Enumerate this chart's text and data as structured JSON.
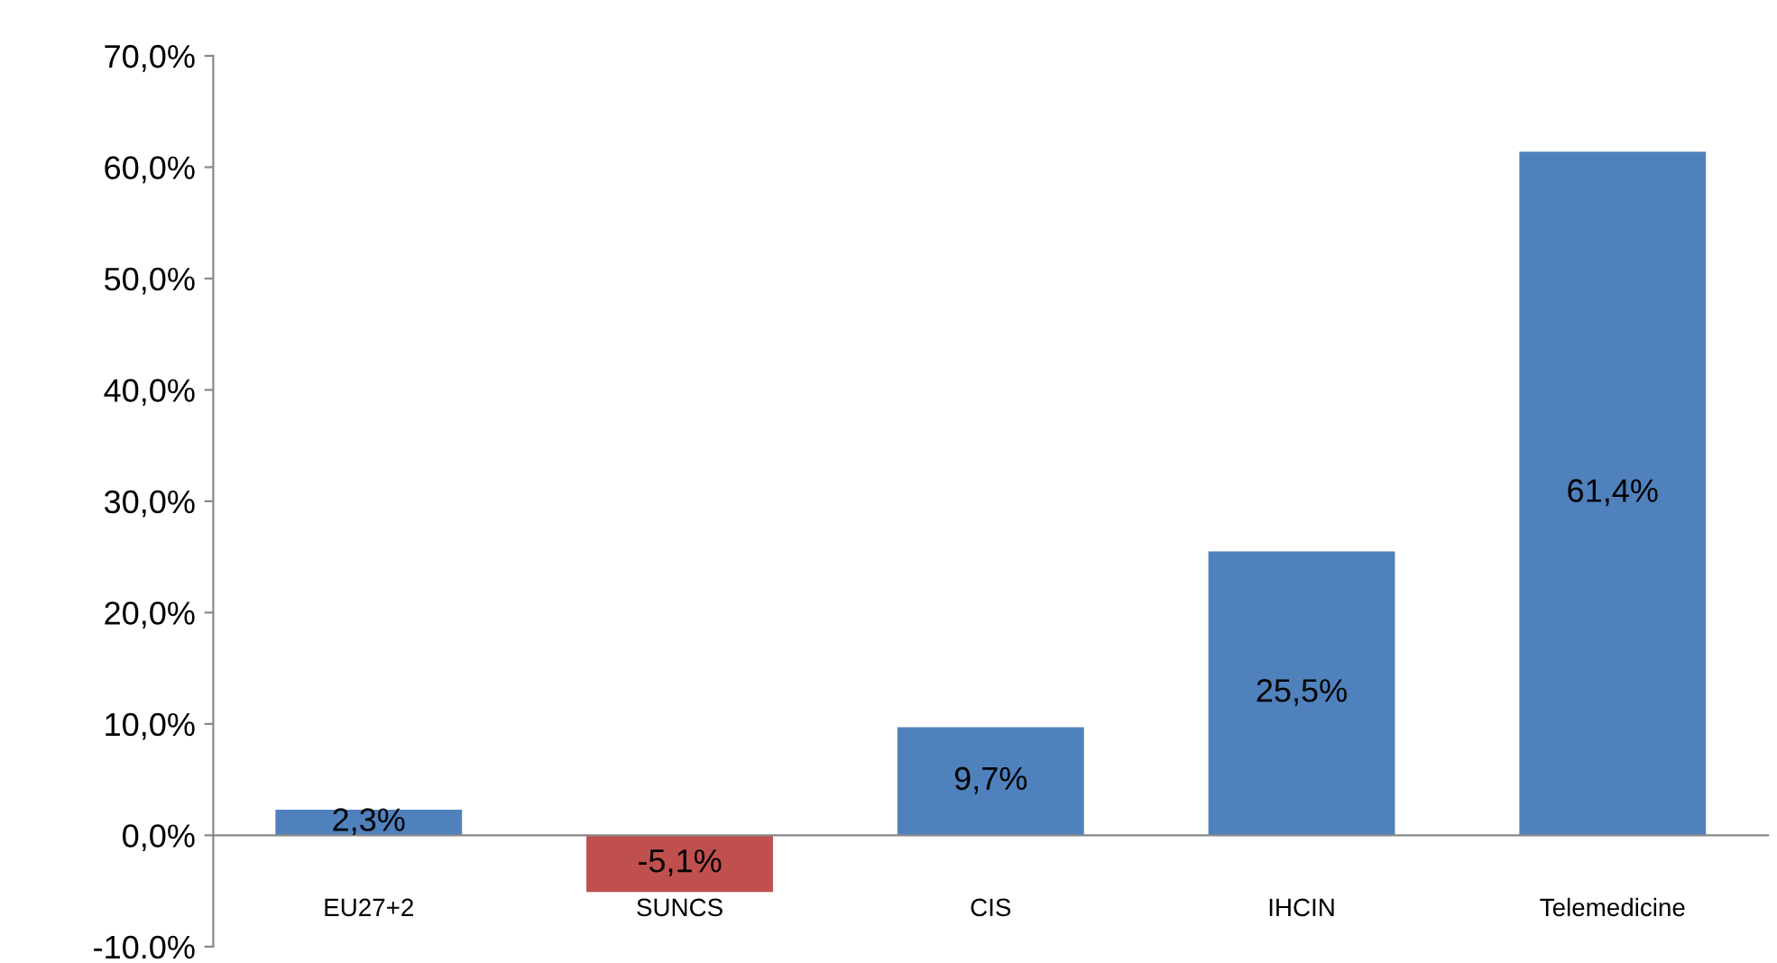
{
  "chart_data": {
    "type": "bar",
    "categories": [
      "EU27+2",
      "SUNCS",
      "CIS",
      "IHCIN",
      "Telemedicine"
    ],
    "values": [
      2.3,
      -5.1,
      9.7,
      25.5,
      61.4
    ],
    "colors": [
      "#4f81bd",
      "#c0504d",
      "#4f81bd",
      "#4f81bd",
      "#4f81bd"
    ],
    "value_labels": [
      "2,3%",
      "-5,1%",
      "9,7%",
      "25,5%",
      "61,4%"
    ],
    "ylim": [
      -10,
      70
    ],
    "yticks": [
      {
        "value": -10,
        "label": "-10.0%"
      },
      {
        "value": 0,
        "label": "0,0%"
      },
      {
        "value": 10,
        "label": "10,0%"
      },
      {
        "value": 20,
        "label": "20,0%"
      },
      {
        "value": 30,
        "label": "30,0%"
      },
      {
        "value": 40,
        "label": "40,0%"
      },
      {
        "value": 50,
        "label": "50,0%"
      },
      {
        "value": 60,
        "label": "60,0%"
      },
      {
        "value": 70,
        "label": "70,0%"
      }
    ],
    "grid": false
  }
}
